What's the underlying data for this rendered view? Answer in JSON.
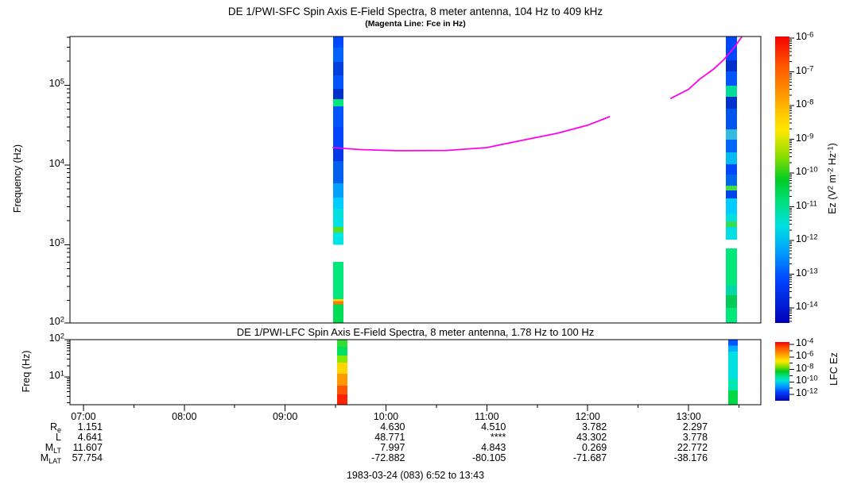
{
  "figure": {
    "footer": "1983-03-24 (083) 6:52 to 13:43",
    "background": "#ffffff",
    "axis_color": "#000000"
  },
  "chart_data": [
    {
      "type": "heatmap",
      "title": "DE 1/PWI-SFC  Spin Axis E-Field Spectra, 8 meter antenna, 104 Hz to 409 kHz",
      "subtitle": "(Magenta Line: Fce in Hz)",
      "ylabel": "Frequency (Hz)",
      "xlabel": "",
      "grid": false,
      "yaxis": {
        "scale": "log",
        "range": [
          104,
          409000
        ],
        "tick_exponents": [
          2,
          3,
          4,
          5
        ]
      },
      "xaxis": {
        "start_time": "6:52",
        "end_time": "13:43",
        "tick_hours": [
          7,
          8,
          9,
          10,
          11,
          12,
          13
        ],
        "tick_labels": [
          "07:00",
          "08:00",
          "09:00",
          "10:00",
          "11:00",
          "12:00",
          "13:00"
        ],
        "minor_tick_interval_hours": 0.5
      },
      "colorbar": {
        "label": "Ez (V^2 m^-2 Hz^-1)",
        "scale": "log",
        "tick_exponents": [
          -6,
          -7,
          -8,
          -9,
          -10,
          -11,
          -12,
          -13,
          -14
        ],
        "label_every": 1,
        "gradient": [
          [
            0,
            "#f40000"
          ],
          [
            0.1,
            "#ff5500"
          ],
          [
            0.18,
            "#ff8800"
          ],
          [
            0.27,
            "#ffc800"
          ],
          [
            0.33,
            "#ffe800"
          ],
          [
            0.42,
            "#88dd00"
          ],
          [
            0.5,
            "#00cc22"
          ],
          [
            0.58,
            "#00e080"
          ],
          [
            0.66,
            "#00e0e0"
          ],
          [
            0.75,
            "#00a0ff"
          ],
          [
            0.85,
            "#0044ff"
          ],
          [
            1,
            "#0000b8"
          ]
        ]
      },
      "fce_line": {
        "name": "Fce (electron cyclotron frequency)",
        "color": "#ff00ee",
        "segments": [
          [
            [
              9.47,
              16500
            ],
            [
              9.75,
              15600
            ],
            [
              10.1,
              15100
            ],
            [
              10.6,
              15200
            ],
            [
              11.0,
              16500
            ],
            [
              11.3,
              19800
            ],
            [
              11.7,
              25000
            ],
            [
              12.0,
              31500
            ],
            [
              12.22,
              40500
            ]
          ],
          [
            [
              12.82,
              68000
            ],
            [
              13.0,
              89000
            ],
            [
              13.11,
              119000
            ],
            [
              13.25,
              160000
            ],
            [
              13.35,
              210000
            ],
            [
              13.45,
              295000
            ],
            [
              13.53,
              409000
            ]
          ]
        ]
      },
      "stripes": [
        {
          "start": "09:29",
          "end": "09:35",
          "t0": 9.476,
          "t1": 9.579,
          "segments": [
            [
              296000,
              409000,
              "#0048ff"
            ],
            [
              196000,
              296000,
              "#0063ff"
            ],
            [
              133000,
              196000,
              "#0040dd"
            ],
            [
              90000,
              133000,
              "#0055ff"
            ],
            [
              67000,
              90000,
              "#0030cc"
            ],
            [
              54500,
              67000,
              "#00e87c"
            ],
            [
              30000,
              54500,
              "#0055ff"
            ],
            [
              16200,
              30000,
              "#0044ff"
            ],
            [
              11200,
              16200,
              "#0038e8"
            ],
            [
              5900,
              11200,
              "#0060ee"
            ],
            [
              3900,
              5900,
              "#00a0ff"
            ],
            [
              2830,
              3900,
              "#00ccff"
            ],
            [
              1670,
              2830,
              "#00e0e0"
            ],
            [
              1420,
              1670,
              "#55dd22"
            ],
            [
              1000,
              1420,
              "#00e5e5"
            ],
            [
              207,
              608,
              "#00e87c"
            ],
            [
              196,
              207,
              "#ffd700"
            ],
            [
              178,
              196,
              "#ff7700"
            ],
            [
              104,
              178,
              "#00dd55"
            ]
          ]
        },
        {
          "start": "13:22",
          "end": "13:29",
          "t0": 13.371,
          "t1": 13.481,
          "segments": [
            [
              206000,
              409000,
              "#0048ff"
            ],
            [
              149000,
              206000,
              "#0030cc"
            ],
            [
              99000,
              149000,
              "#0055ff"
            ],
            [
              71600,
              99000,
              "#00dd99"
            ],
            [
              50800,
              71600,
              "#0033cc"
            ],
            [
              28000,
              50800,
              "#0055ee"
            ],
            [
              20800,
              28000,
              "#33bbdd"
            ],
            [
              14400,
              20800,
              "#0066ff"
            ],
            [
              10200,
              14400,
              "#00bbee"
            ],
            [
              7600,
              10200,
              "#0048ff"
            ],
            [
              5500,
              7600,
              "#0066ee"
            ],
            [
              4800,
              5500,
              "#44dd44"
            ],
            [
              3800,
              4800,
              "#0044ee"
            ],
            [
              2400,
              3800,
              "#00ccff"
            ],
            [
              1950,
              2400,
              "#00e0e0"
            ],
            [
              1670,
              1950,
              "#33dd55"
            ],
            [
              1150,
              1670,
              "#00e0e0"
            ],
            [
              310,
              900,
              "#00e87c"
            ],
            [
              232,
              310,
              "#00d8a8"
            ],
            [
              161,
              232,
              "#00cc55"
            ],
            [
              104,
              161,
              "#00e87c"
            ]
          ]
        }
      ]
    },
    {
      "type": "heatmap",
      "title": "DE 1/PWI-LFC  Spin Axis E-Field Spectra, 8 meter antenna, 1.78 Hz to 100 Hz",
      "ylabel": "Freq (Hz)",
      "xlabel": "",
      "grid": false,
      "yaxis": {
        "scale": "log",
        "range": [
          1.78,
          100
        ],
        "tick_exponents": [
          1,
          2
        ]
      },
      "xaxis": {
        "start_time": "6:52",
        "end_time": "13:43",
        "tick_hours": [
          7,
          8,
          9,
          10,
          11,
          12,
          13
        ],
        "tick_labels": [
          "07:00",
          "08:00",
          "09:00",
          "10:00",
          "11:00",
          "12:00",
          "13:00"
        ],
        "minor_tick_interval_hours": 0.5
      },
      "colorbar": {
        "label": "LFC Ez",
        "scale": "log",
        "tick_exponents": [
          -4,
          -5,
          -6,
          -7,
          -8,
          -9,
          -10,
          -11,
          -12
        ],
        "label_every": 2,
        "gradient": [
          [
            0,
            "#f40000"
          ],
          [
            0.1,
            "#ff5500"
          ],
          [
            0.18,
            "#ff8800"
          ],
          [
            0.27,
            "#ffc800"
          ],
          [
            0.33,
            "#ffe800"
          ],
          [
            0.42,
            "#88dd00"
          ],
          [
            0.5,
            "#00cc22"
          ],
          [
            0.58,
            "#00e080"
          ],
          [
            0.66,
            "#00e0e0"
          ],
          [
            0.75,
            "#00a0ff"
          ],
          [
            0.85,
            "#0044ff"
          ],
          [
            1,
            "#0000b8"
          ]
        ]
      },
      "stripes": [
        {
          "start": "09:31",
          "end": "09:37",
          "t0": 9.515,
          "t1": 9.618,
          "segments": [
            [
              64,
              100,
              "#33dd33"
            ],
            [
              37,
              64,
              "#00e060"
            ],
            [
              24,
              37,
              "#88e800"
            ],
            [
              12,
              24,
              "#ffd500"
            ],
            [
              5.8,
              12,
              "#ff9900"
            ],
            [
              3.4,
              5.8,
              "#ff5500"
            ],
            [
              1.78,
              3.4,
              "#ff2200"
            ]
          ]
        },
        {
          "start": "13:24",
          "end": "13:29",
          "t0": 13.394,
          "t1": 13.489,
          "segments": [
            [
              70,
              100,
              "#0055ff"
            ],
            [
              48,
              70,
              "#00b0ff"
            ],
            [
              8.6,
              48,
              "#00e0e0"
            ],
            [
              4.3,
              8.6,
              "#00e8b0"
            ],
            [
              1.78,
              4.3,
              "#00d844"
            ]
          ]
        }
      ]
    }
  ],
  "ephemeris": {
    "rows": [
      {
        "label_main": "R",
        "label_sub": "e",
        "values": [
          "1.151",
          "",
          "",
          "4.630",
          "4.510",
          "3.782",
          "2.297"
        ]
      },
      {
        "label_main": "L",
        "label_sub": "",
        "values": [
          "4.641",
          "",
          "",
          "48.771",
          "****",
          "43.302",
          "3.778"
        ]
      },
      {
        "label_main": "M",
        "label_sub": "LT",
        "values": [
          "11.607",
          "",
          "",
          "7.997",
          "4.843",
          "0.269",
          "22.772"
        ]
      },
      {
        "label_main": "M",
        "label_sub": "LAT",
        "values": [
          "57.754",
          "",
          "",
          "-72.882",
          "-80.105",
          "-71.687",
          "-38.176"
        ]
      }
    ]
  }
}
